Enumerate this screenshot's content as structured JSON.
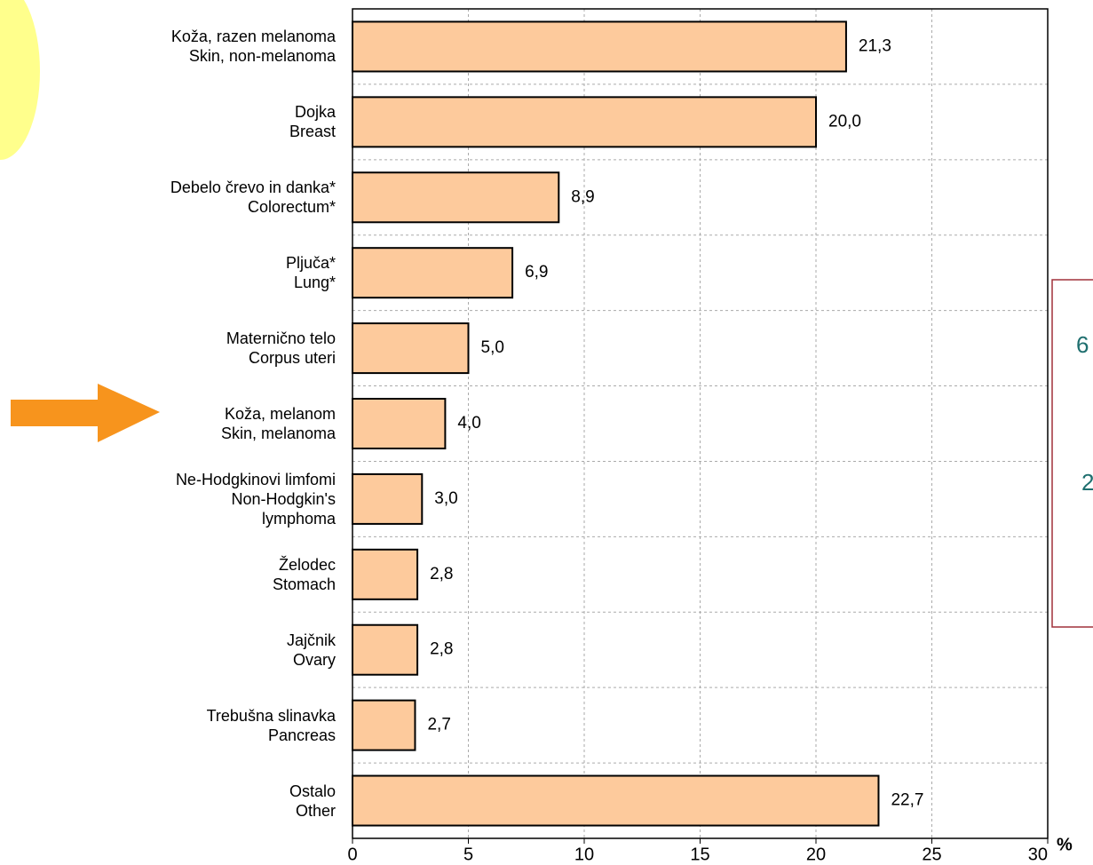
{
  "chart_data": {
    "type": "bar",
    "orientation": "horizontal",
    "categories": [
      "Koža, razen melanoma\nSkin, non-melanoma",
      "Dojka\nBreast",
      "Debelo črevo in danka*\nColorectum*",
      "Pljuča*\nLung*",
      "Maternično telo\nCorpus uteri",
      "Koža, melanom\nSkin, melanoma",
      "Ne-Hodgkinovi limfomi\nNon-Hodgkin's\nlymphoma",
      "Želodec\nStomach",
      "Jajčnik\nOvary",
      "Trebušna slinavka\nPancreas",
      "Ostalo\nOther"
    ],
    "values": [
      21.3,
      20.0,
      8.9,
      6.9,
      5.0,
      4.0,
      3.0,
      2.8,
      2.8,
      2.7,
      22.7
    ],
    "value_labels": [
      "21,3",
      "20,0",
      "8,9",
      "6,9",
      "5,0",
      "4,0",
      "3,0",
      "2,8",
      "2,8",
      "2,7",
      "22,7"
    ],
    "color": "#fdca9c",
    "xlim": [
      0,
      30
    ],
    "xticks": [
      0,
      5,
      10,
      15,
      20,
      25,
      30
    ],
    "xlabel": "%",
    "grid": true
  },
  "side_box": {
    "lines": [
      "6",
      "2"
    ]
  }
}
